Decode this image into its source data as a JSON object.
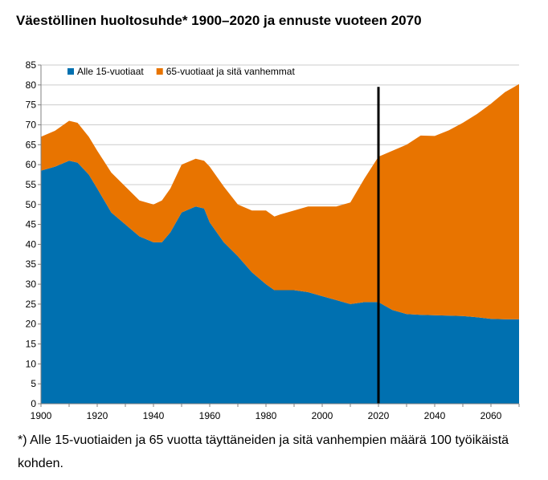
{
  "title": "Väestöllinen huoltosuhde* 1900–2020 ja ennuste vuoteen 2070",
  "footnote": "*) Alle 15-vuotiaiden ja 65 vuotta täyttäneiden ja sitä vanhempien määrä 100 työikäistä kohden.",
  "colors": {
    "under15": "#0070b0",
    "over65": "#e87400",
    "grid": "#cccccc",
    "divider": "#000000"
  },
  "chart_data": {
    "type": "area",
    "stacked": true,
    "xlim": [
      1900,
      2070
    ],
    "ylim": [
      0,
      85
    ],
    "x_ticks": [
      1900,
      1920,
      1940,
      1960,
      1980,
      2000,
      2020,
      2040,
      2060
    ],
    "y_ticks": [
      0,
      5,
      10,
      15,
      20,
      25,
      30,
      35,
      40,
      45,
      50,
      55,
      60,
      65,
      70,
      75,
      80,
      85
    ],
    "grid": "horizontal",
    "legend_position": "top-left",
    "forecast_start": 2020,
    "x": [
      1900,
      1905,
      1910,
      1913,
      1917,
      1920,
      1925,
      1930,
      1935,
      1940,
      1943,
      1946,
      1950,
      1955,
      1958,
      1960,
      1965,
      1970,
      1975,
      1980,
      1983,
      1985,
      1990,
      1995,
      2000,
      2005,
      2010,
      2015,
      2020,
      2025,
      2030,
      2035,
      2040,
      2045,
      2050,
      2055,
      2060,
      2065,
      2070
    ],
    "series": [
      {
        "name": "Alle 15-vuotiaat",
        "color": "#0070b0",
        "values": [
          58.5,
          59.5,
          61,
          60.5,
          57.5,
          54,
          48,
          45,
          42,
          40.5,
          40.5,
          43,
          48,
          49.5,
          49,
          45.5,
          40.5,
          37,
          33,
          30,
          28.5,
          28.5,
          28.5,
          28,
          27,
          26,
          25,
          25.5,
          25.5,
          23.5,
          22.5,
          22.3,
          22.2,
          22.1,
          22,
          21.7,
          21.3,
          21.2,
          21.2
        ]
      },
      {
        "name": "65-vuotiaat ja sitä vanhemmat",
        "color": "#e87400",
        "values": [
          8.5,
          9,
          10,
          10,
          9.5,
          9.5,
          10,
          9.5,
          9,
          9.5,
          10.5,
          11,
          12,
          12,
          12,
          14,
          14,
          13,
          15.5,
          18.5,
          18.5,
          19,
          20,
          21.5,
          22.5,
          23.5,
          25.5,
          31,
          36.5,
          40,
          42.5,
          45,
          45,
          46.5,
          48.5,
          51,
          54,
          57,
          59
        ]
      }
    ]
  }
}
